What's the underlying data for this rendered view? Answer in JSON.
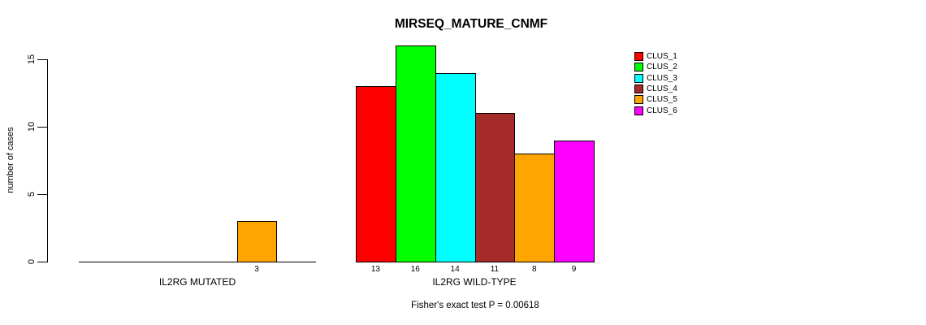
{
  "chart_data": {
    "type": "bar",
    "title": "MIRSEQ_MATURE_CNMF",
    "ylabel": "number of cases",
    "ylim": [
      0,
      15
    ],
    "yticks": [
      0,
      5,
      10,
      15
    ],
    "grid": false,
    "legend_position": "right",
    "series": [
      {
        "name": "CLUS_1",
        "color": "#ff0000"
      },
      {
        "name": "CLUS_2",
        "color": "#00ff00"
      },
      {
        "name": "CLUS_3",
        "color": "#00ffff"
      },
      {
        "name": "CLUS_4",
        "color": "#a52a2a"
      },
      {
        "name": "CLUS_5",
        "color": "#ffa500"
      },
      {
        "name": "CLUS_6",
        "color": "#ff00ff"
      }
    ],
    "groups": [
      {
        "label": "IL2RG MUTATED",
        "values": [
          0,
          0,
          0,
          0,
          3,
          0
        ]
      },
      {
        "label": "IL2RG WILD-TYPE",
        "values": [
          13,
          16,
          14,
          11,
          8,
          9
        ]
      }
    ],
    "footnote": "Fisher's exact test P = 0.00618"
  }
}
